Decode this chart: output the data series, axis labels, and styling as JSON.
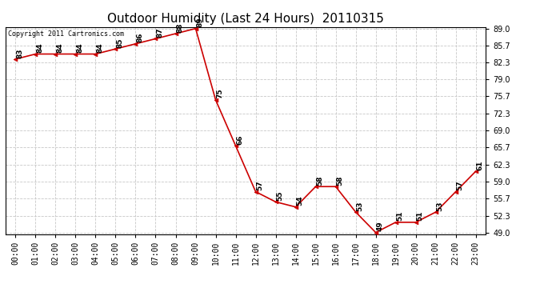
{
  "title": "Outdoor Humidity (Last 24 Hours)  20110315",
  "copyright": "Copyright 2011 Cartronics.com",
  "x_labels": [
    "00:00",
    "01:00",
    "02:00",
    "03:00",
    "04:00",
    "05:00",
    "06:00",
    "07:00",
    "08:00",
    "09:00",
    "10:00",
    "11:00",
    "12:00",
    "13:00",
    "14:00",
    "15:00",
    "16:00",
    "17:00",
    "18:00",
    "19:00",
    "20:00",
    "21:00",
    "22:00",
    "23:00"
  ],
  "y_values": [
    83,
    84,
    84,
    84,
    84,
    85,
    86,
    87,
    88,
    89,
    75,
    66,
    57,
    55,
    54,
    58,
    58,
    53,
    49,
    51,
    51,
    53,
    57,
    61
  ],
  "line_color": "#cc0000",
  "marker_color": "#cc0000",
  "bg_color": "#ffffff",
  "grid_color": "#c8c8c8",
  "ylim_min": 49.0,
  "ylim_max": 89.0,
  "yticks": [
    49.0,
    52.3,
    55.7,
    59.0,
    62.3,
    65.7,
    69.0,
    72.3,
    75.7,
    79.0,
    82.3,
    85.7,
    89.0
  ],
  "title_fontsize": 11,
  "label_fontsize": 6.5,
  "tick_fontsize": 7,
  "copyright_fontsize": 6
}
